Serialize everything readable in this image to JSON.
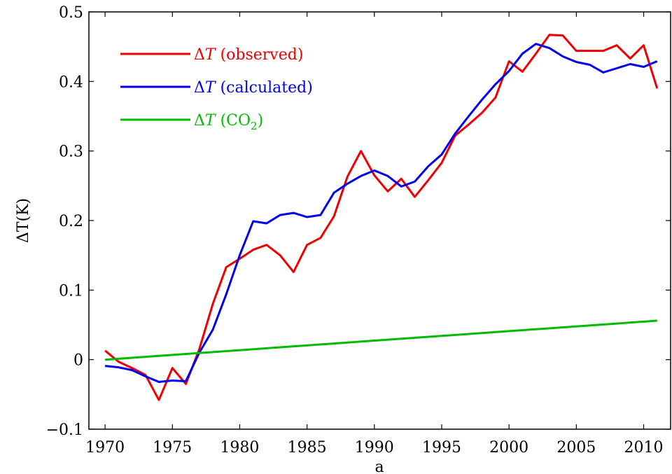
{
  "chart_data": {
    "type": "line",
    "title": "",
    "xlabel": "a",
    "ylabel": "ΔT(K)",
    "xlim": [
      1968.8,
      2012
    ],
    "ylim": [
      -0.1,
      0.5
    ],
    "xticks": [
      1970,
      1975,
      1980,
      1985,
      1990,
      1995,
      2000,
      2005,
      2010
    ],
    "xtick_labels": [
      "1970",
      "1975",
      "1980",
      "1985",
      "1990",
      "1995",
      "2000",
      "2005",
      "2010"
    ],
    "yticks": [
      -0.1,
      0,
      0.1,
      0.2,
      0.3,
      0.4,
      0.5
    ],
    "ytick_labels": [
      "−0.1",
      "0",
      "0.1",
      "0.2",
      "0.3",
      "0.4",
      "0.5"
    ],
    "grid": false,
    "legend_position": "top-left",
    "series": [
      {
        "name": "ΔT (observed)",
        "color": "#ee0000",
        "x": [
          1970,
          1971,
          1972,
          1973,
          1974,
          1975,
          1976,
          1977,
          1978,
          1979,
          1980,
          1981,
          1982,
          1983,
          1984,
          1985,
          1986,
          1987,
          1988,
          1989,
          1990,
          1991,
          1992,
          1993,
          1994,
          1995,
          1996,
          1997,
          1998,
          1999,
          2000,
          2001,
          2002,
          2003,
          2004,
          2005,
          2006,
          2007,
          2008,
          2009,
          2010,
          2011
        ],
        "y": [
          0.013,
          -0.003,
          -0.012,
          -0.022,
          -0.058,
          -0.012,
          -0.035,
          0.015,
          0.08,
          0.133,
          0.145,
          0.158,
          0.165,
          0.15,
          0.126,
          0.165,
          0.175,
          0.206,
          0.263,
          0.3,
          0.265,
          0.242,
          0.26,
          0.234,
          0.258,
          0.283,
          0.322,
          0.338,
          0.355,
          0.377,
          0.429,
          0.414,
          0.44,
          0.467,
          0.466,
          0.444,
          0.444,
          0.444,
          0.452,
          0.433,
          0.452,
          0.39
        ]
      },
      {
        "name": "ΔT (calculated)",
        "color": "#0000ee",
        "x": [
          1970,
          1971,
          1972,
          1973,
          1974,
          1975,
          1976,
          1977,
          1978,
          1979,
          1980,
          1981,
          1982,
          1983,
          1984,
          1985,
          1986,
          1987,
          1988,
          1989,
          1990,
          1991,
          1992,
          1993,
          1994,
          1995,
          1996,
          1997,
          1998,
          1999,
          2000,
          2001,
          2002,
          2003,
          2004,
          2005,
          2006,
          2007,
          2008,
          2009,
          2010,
          2011
        ],
        "y": [
          -0.009,
          -0.011,
          -0.015,
          -0.024,
          -0.032,
          -0.03,
          -0.031,
          0.01,
          0.043,
          0.094,
          0.15,
          0.199,
          0.196,
          0.208,
          0.211,
          0.205,
          0.208,
          0.24,
          0.253,
          0.264,
          0.272,
          0.264,
          0.249,
          0.256,
          0.278,
          0.295,
          0.325,
          0.35,
          0.374,
          0.396,
          0.415,
          0.44,
          0.454,
          0.448,
          0.436,
          0.428,
          0.424,
          0.413,
          0.419,
          0.425,
          0.421,
          0.429
        ]
      },
      {
        "name": "ΔT (CO₂)",
        "color": "#00bb00",
        "x": [
          1970,
          2011
        ],
        "y": [
          0.0,
          0.056
        ]
      }
    ],
    "legend": [
      {
        "prefix": "Δ",
        "var": "T",
        "suffix": " (observed)",
        "color": "#ee0000"
      },
      {
        "prefix": "Δ",
        "var": "T",
        "suffix": " (calculated)",
        "color": "#0000ee"
      },
      {
        "prefix": "Δ",
        "var": "T",
        "suffix": " (CO",
        "sub": "2",
        "end": ")",
        "color": "#00bb00"
      }
    ]
  }
}
